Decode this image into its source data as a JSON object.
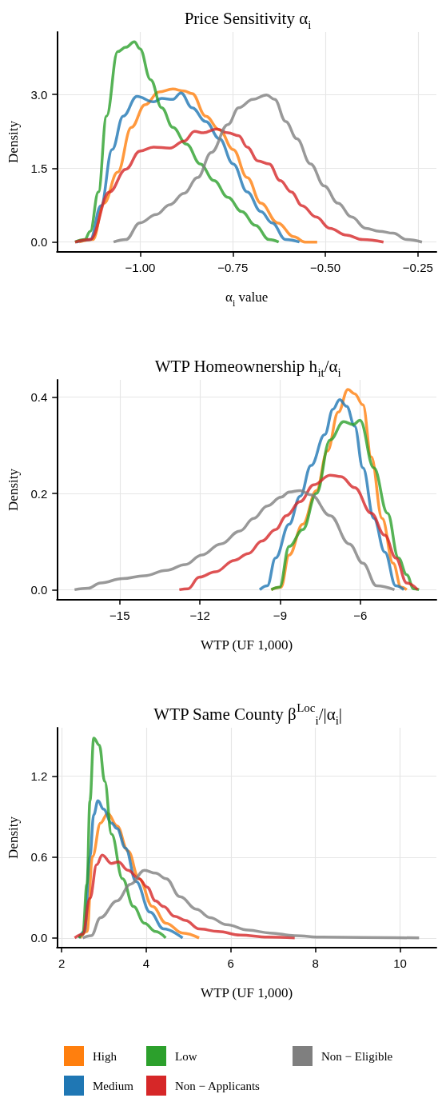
{
  "chart_data": [
    {
      "type": "line",
      "title": "Price Sensitivity α$_{i}$",
      "xlabel": "α$_{i}$ value",
      "ylabel": "Density",
      "xlim": [
        -1.225,
        -0.2
      ],
      "ylim": [
        -0.2,
        4.27
      ],
      "xticks": [
        {
          "value": -1,
          "label": "−1.00"
        },
        {
          "value": -0.75,
          "label": "−0.75"
        },
        {
          "value": -0.5,
          "label": "−0.50"
        },
        {
          "value": -0.25,
          "label": "−0.25"
        }
      ],
      "yticks": [
        {
          "value": 0,
          "label": "0.0"
        },
        {
          "value": 1.5,
          "label": "1.5"
        },
        {
          "value": 3,
          "label": "3.0"
        }
      ],
      "grid": true,
      "legend": false,
      "series": [
        {
          "color": "#ff7f0e",
          "x": [
            -1.165,
            -1.128,
            -1.098,
            -1.061,
            -1.024,
            -0.987,
            -0.949,
            -0.912,
            -0.882,
            -0.86,
            -0.823,
            -0.786,
            -0.749,
            -0.711,
            -0.674,
            -0.629,
            -0.585,
            -0.555,
            -0.522
          ],
          "values": [
            0,
            0.05,
            0.79,
            1.42,
            2.33,
            2.79,
            3.05,
            3.11,
            3.07,
            3.02,
            2.56,
            2.28,
            1.88,
            1.31,
            0.79,
            0.39,
            0.11,
            0,
            0
          ]
        },
        {
          "color": "#1f77b4",
          "x": [
            -1.173,
            -1.135,
            -1.106,
            -1.076,
            -1.046,
            -1.009,
            -0.964,
            -0.942,
            -0.912,
            -0.89,
            -0.86,
            -0.823,
            -0.786,
            -0.749,
            -0.711,
            -0.674,
            -0.644,
            -0.607,
            -0.57
          ],
          "values": [
            0,
            0.05,
            0.74,
            1.88,
            2.56,
            2.96,
            2.85,
            2.92,
            2.9,
            3.03,
            2.73,
            2.45,
            2.1,
            1.59,
            1.02,
            0.62,
            0.39,
            0.05,
            0
          ]
        },
        {
          "color": "#2ca02c",
          "x": [
            -1.176,
            -1.15,
            -1.135,
            -1.113,
            -1.091,
            -1.061,
            -1.039,
            -1.016,
            -1.001,
            -0.972,
            -0.942,
            -0.912,
            -0.875,
            -0.838,
            -0.801,
            -0.763,
            -0.726,
            -0.689,
            -0.652,
            -0.626
          ],
          "values": [
            0,
            0.05,
            0.22,
            1.02,
            2.56,
            3.87,
            3.96,
            4.07,
            3.93,
            3.3,
            2.73,
            2.33,
            1.99,
            1.59,
            1.25,
            0.91,
            0.62,
            0.34,
            0.05,
            0
          ]
        },
        {
          "color": "#d62728",
          "x": [
            -1.176,
            -1.135,
            -1.083,
            -1.039,
            -1.001,
            -0.964,
            -0.92,
            -0.882,
            -0.853,
            -0.83,
            -0.793,
            -0.763,
            -0.734,
            -0.711,
            -0.682,
            -0.652,
            -0.622,
            -0.592,
            -0.563,
            -0.525,
            -0.488,
            -0.443,
            -0.399,
            -0.343
          ],
          "values": [
            0,
            0.05,
            1.02,
            1.48,
            1.85,
            1.93,
            1.91,
            2.05,
            2.25,
            2.22,
            2.3,
            2.22,
            2.16,
            1.93,
            1.65,
            1.59,
            1.25,
            1.02,
            0.74,
            0.51,
            0.28,
            0.14,
            0.05,
            0
          ]
        },
        {
          "color": "#7f7f7f",
          "x": [
            -1.072,
            -1.039,
            -1.001,
            -0.957,
            -0.92,
            -0.882,
            -0.845,
            -0.808,
            -0.763,
            -0.734,
            -0.696,
            -0.659,
            -0.637,
            -0.607,
            -0.577,
            -0.54,
            -0.503,
            -0.466,
            -0.429,
            -0.391,
            -0.354,
            -0.317,
            -0.28,
            -0.239
          ],
          "values": [
            0,
            0.05,
            0.39,
            0.56,
            0.76,
            0.99,
            1.31,
            1.82,
            2.39,
            2.73,
            2.9,
            2.99,
            2.9,
            2.45,
            2.1,
            1.59,
            1.14,
            0.79,
            0.51,
            0.28,
            0.22,
            0.18,
            0.05,
            0
          ]
        }
      ]
    },
    {
      "type": "line",
      "title": "WTP Homeownership h$_{it}$/α$_{i}$",
      "xlabel": "WTP (UF 1,000)",
      "ylabel": "Density",
      "xlim": [
        -17.35,
        -3.15
      ],
      "ylim": [
        -0.021,
        0.436
      ],
      "xticks": [
        {
          "value": -15,
          "label": "−15"
        },
        {
          "value": -12,
          "label": "−12"
        },
        {
          "value": -9,
          "label": "−9"
        },
        {
          "value": -6,
          "label": "−6"
        }
      ],
      "yticks": [
        {
          "value": 0,
          "label": "0.0"
        },
        {
          "value": 0.2,
          "label": "0.2"
        },
        {
          "value": 0.4,
          "label": "0.4"
        }
      ],
      "grid": true,
      "legend": false,
      "series": [
        {
          "color": "#ff7f0e",
          "x": [
            -9.33,
            -8.97,
            -8.66,
            -8.15,
            -7.64,
            -7.23,
            -6.82,
            -6.46,
            -6.21,
            -5.9,
            -5.59,
            -5.18,
            -4.77,
            -4.47,
            -4.26
          ],
          "values": [
            0,
            0.005,
            0.072,
            0.136,
            0.206,
            0.288,
            0.369,
            0.416,
            0.407,
            0.384,
            0.276,
            0.148,
            0.055,
            0.005,
            0
          ]
        },
        {
          "color": "#1f77b4",
          "x": [
            -9.76,
            -9.48,
            -9.17,
            -8.66,
            -8.25,
            -7.84,
            -7.33,
            -7.02,
            -6.77,
            -6.51,
            -6.21,
            -5.9,
            -5.49,
            -5.08,
            -4.67,
            -4.37
          ],
          "values": [
            0,
            0.008,
            0.066,
            0.136,
            0.194,
            0.258,
            0.322,
            0.375,
            0.395,
            0.381,
            0.34,
            0.253,
            0.148,
            0.078,
            0.008,
            0
          ]
        },
        {
          "color": "#2ca02c",
          "x": [
            -9.33,
            -9.02,
            -8.66,
            -8.15,
            -7.64,
            -7.13,
            -6.62,
            -6.26,
            -6.01,
            -5.49,
            -4.98,
            -4.57,
            -4.26,
            -4.0,
            -3.8
          ],
          "values": [
            0,
            0.005,
            0.09,
            0.125,
            0.2,
            0.311,
            0.349,
            0.343,
            0.352,
            0.253,
            0.159,
            0.066,
            0.031,
            0.002,
            0
          ]
        },
        {
          "color": "#d62728",
          "x": [
            -12.77,
            -12.44,
            -12.03,
            -11.42,
            -10.71,
            -10.19,
            -9.68,
            -9.17,
            -8.76,
            -8.25,
            -7.74,
            -7.13,
            -6.72,
            -6.21,
            -5.59,
            -5.08,
            -4.67,
            -4.26,
            -3.85
          ],
          "values": [
            0,
            0.002,
            0.026,
            0.037,
            0.061,
            0.075,
            0.101,
            0.125,
            0.154,
            0.183,
            0.218,
            0.238,
            0.235,
            0.212,
            0.159,
            0.113,
            0.066,
            0.014,
            0
          ]
        },
        {
          "color": "#7f7f7f",
          "x": [
            -16.69,
            -16.18,
            -15.72,
            -14.9,
            -14.08,
            -13.26,
            -12.55,
            -11.93,
            -11.22,
            -10.5,
            -9.99,
            -9.48,
            -8.97,
            -8.66,
            -8.25,
            -7.84,
            -7.13,
            -6.41,
            -5.9,
            -5.39,
            -4.72
          ],
          "values": [
            0,
            0.003,
            0.014,
            0.023,
            0.029,
            0.04,
            0.052,
            0.072,
            0.095,
            0.122,
            0.148,
            0.174,
            0.192,
            0.203,
            0.206,
            0.197,
            0.154,
            0.095,
            0.055,
            0.008,
            0
          ]
        }
      ]
    },
    {
      "type": "line",
      "title": "WTP Same County β$^{Loc}$$_{i}$/|α$_{i}$|",
      "xlabel": "WTP (UF 1,000)",
      "ylabel": "Density",
      "xlim": [
        1.89,
        10.86
      ],
      "ylim": [
        -0.072,
        1.56
      ],
      "xticks": [
        2,
        4,
        6,
        8,
        10
      ],
      "yticks": [
        {
          "value": 0,
          "label": "0.0"
        },
        {
          "value": 0.6,
          "label": "0.6"
        },
        {
          "value": 1.2,
          "label": "1.2"
        }
      ],
      "grid": true,
      "legend": "bottom",
      "series": [
        {
          "name": "High",
          "color": "#ff7f0e",
          "x": [
            2.44,
            2.6,
            2.73,
            2.92,
            3.09,
            3.31,
            3.57,
            3.83,
            4.15,
            4.47,
            4.86,
            5.25
          ],
          "values": [
            0,
            0.048,
            0.605,
            0.853,
            0.925,
            0.832,
            0.646,
            0.44,
            0.233,
            0.109,
            0.037,
            0
          ]
        },
        {
          "name": "Medium",
          "color": "#1f77b4",
          "x": [
            2.41,
            2.54,
            2.67,
            2.76,
            2.86,
            2.99,
            3.18,
            3.31,
            3.51,
            3.76,
            4.09,
            4.41,
            4.86
          ],
          "values": [
            0,
            0.048,
            0.605,
            0.915,
            1.018,
            0.956,
            0.853,
            0.812,
            0.667,
            0.419,
            0.192,
            0.068,
            0
          ]
        },
        {
          "name": "Low",
          "color": "#2ca02c",
          "x": [
            2.41,
            2.5,
            2.6,
            2.67,
            2.76,
            2.89,
            3.02,
            3.18,
            3.44,
            3.7,
            3.96,
            4.22,
            4.46
          ],
          "values": [
            0,
            0.027,
            0.399,
            1.018,
            1.483,
            1.431,
            1.162,
            0.77,
            0.44,
            0.233,
            0.109,
            0.048,
            0
          ]
        },
        {
          "name": "Non − Applicants",
          "color": "#d62728",
          "x": [
            2.31,
            2.5,
            2.67,
            2.83,
            2.96,
            3.18,
            3.34,
            3.57,
            3.83,
            4.02,
            4.22,
            4.41,
            4.67,
            4.93,
            5.25,
            5.7,
            6.22,
            6.87,
            7.51
          ],
          "values": [
            0,
            0.027,
            0.295,
            0.543,
            0.615,
            0.553,
            0.564,
            0.502,
            0.44,
            0.378,
            0.275,
            0.233,
            0.161,
            0.13,
            0.068,
            0.048,
            0.021,
            0.006,
            0
          ]
        },
        {
          "name": "Non − Eligible",
          "color": "#7f7f7f",
          "x": [
            2.5,
            2.7,
            2.92,
            3.31,
            3.63,
            3.96,
            4.22,
            4.47,
            4.8,
            5.19,
            5.51,
            5.9,
            6.41,
            6.93,
            7.51,
            8.16,
            9.13,
            10.45
          ],
          "values": [
            0,
            0.017,
            0.151,
            0.275,
            0.399,
            0.502,
            0.481,
            0.44,
            0.306,
            0.213,
            0.151,
            0.099,
            0.058,
            0.037,
            0.017,
            0.006,
            0.004,
            0
          ]
        }
      ]
    }
  ]
}
